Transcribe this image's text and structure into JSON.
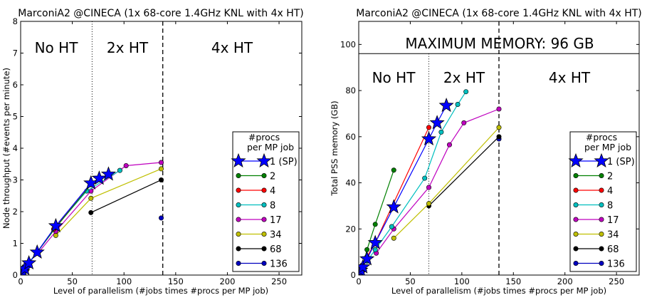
{
  "chart_data": [
    {
      "type": "line",
      "title": "MarconiA2 @CINECA (1x 68-core 1.4GHz KNL with 4x HT)",
      "xlabel": "Level of parallelism (#jobs times #procs per MP job)",
      "ylabel": "Node throughput (#events per minute)",
      "xlim": [
        0,
        272
      ],
      "ylim": [
        0,
        8
      ],
      "xticks": [
        "0",
        "50",
        "100",
        "150",
        "200",
        "250"
      ],
      "yticks": [
        "0",
        "1",
        "2",
        "3",
        "4",
        "5",
        "6",
        "7",
        "8"
      ],
      "regions": [
        {
          "label": "No HT",
          "x": 34
        },
        {
          "label": "2x HT",
          "x": 102
        },
        {
          "label": "4x HT",
          "x": 204
        }
      ],
      "vlines": [
        {
          "x": 68,
          "style": "dotted"
        },
        {
          "x": 136,
          "style": "dashed"
        }
      ],
      "legend_title": "#procs\nper MP job",
      "legend_loc": "lower-right",
      "series": [
        {
          "name": "1 (SP)",
          "color": "#0000ff",
          "marker": "star",
          "points": [
            [
              1,
              0.05
            ],
            [
              2,
              0.1
            ],
            [
              4,
              0.2
            ],
            [
              8,
              0.38
            ],
            [
              16,
              0.72
            ],
            [
              34,
              1.55
            ],
            [
              68,
              2.9
            ],
            [
              76,
              3.05
            ],
            [
              85,
              3.18
            ]
          ]
        },
        {
          "name": "2",
          "color": "#008000",
          "marker": "circle",
          "points": [
            [
              2,
              0.1
            ],
            [
              4,
              0.2
            ],
            [
              8,
              0.38
            ],
            [
              16,
              0.72
            ],
            [
              34,
              1.5
            ],
            [
              68,
              2.85
            ]
          ]
        },
        {
          "name": "4",
          "color": "#ff0000",
          "marker": "circle",
          "points": [
            [
              4,
              0.2
            ],
            [
              8,
              0.38
            ],
            [
              16,
              0.72
            ],
            [
              32,
              1.45
            ],
            [
              68,
              2.9
            ]
          ]
        },
        {
          "name": "8",
          "color": "#00bfbf",
          "marker": "circle",
          "points": [
            [
              8,
              0.4
            ],
            [
              16,
              0.72
            ],
            [
              32,
              1.45
            ],
            [
              64,
              2.65
            ],
            [
              96,
              3.3
            ]
          ]
        },
        {
          "name": "17",
          "color": "#bf00bf",
          "marker": "circle",
          "points": [
            [
              17,
              0.7
            ],
            [
              34,
              1.38
            ],
            [
              68,
              2.65
            ],
            [
              102,
              3.45
            ],
            [
              136,
              3.55
            ]
          ]
        },
        {
          "name": "34",
          "color": "#bfbf00",
          "marker": "circle",
          "points": [
            [
              34,
              1.25
            ],
            [
              68,
              2.42
            ],
            [
              136,
              3.35
            ]
          ]
        },
        {
          "name": "68",
          "color": "#000000",
          "marker": "circle",
          "points": [
            [
              68,
              1.97
            ],
            [
              136,
              3.0
            ]
          ]
        },
        {
          "name": "136",
          "color": "#0000bf",
          "marker": "circle",
          "points": [
            [
              136,
              1.8
            ]
          ]
        }
      ]
    },
    {
      "type": "line",
      "title": "MarconiA2 @CINECA (1x 68-core 1.4GHz KNL with 4x HT)",
      "xlabel": "Level of parallelism (#jobs times #procs per MP job)",
      "ylabel": "Total PSS memory (GB)",
      "xlim": [
        0,
        272
      ],
      "ylim": [
        0,
        110
      ],
      "xticks": [
        "0",
        "50",
        "100",
        "150",
        "200",
        "250"
      ],
      "yticks": [
        "0",
        "20",
        "40",
        "60",
        "80",
        "100"
      ],
      "hline": {
        "y": 96,
        "label": "MAXIMUM MEMORY: 96 GB"
      },
      "regions": [
        {
          "label": "No HT",
          "x": 34
        },
        {
          "label": "2x HT",
          "x": 102
        },
        {
          "label": "4x HT",
          "x": 204
        }
      ],
      "vlines": [
        {
          "x": 68,
          "style": "dotted"
        },
        {
          "x": 136,
          "style": "dashed"
        }
      ],
      "legend_title": "#procs\nper MP job",
      "legend_loc": "lower-right",
      "series": [
        {
          "name": "1 (SP)",
          "color": "#0000ff",
          "marker": "star",
          "points": [
            [
              1,
              1
            ],
            [
              2,
              2
            ],
            [
              4,
              3.5
            ],
            [
              8,
              7
            ],
            [
              16,
              14
            ],
            [
              34,
              29.5
            ],
            [
              68,
              59
            ],
            [
              76,
              66
            ],
            [
              85,
              73.5
            ]
          ]
        },
        {
          "name": "2",
          "color": "#008000",
          "marker": "circle",
          "points": [
            [
              2,
              2
            ],
            [
              4,
              4
            ],
            [
              8,
              11
            ],
            [
              16,
              22
            ],
            [
              34,
              45.5
            ]
          ]
        },
        {
          "name": "4",
          "color": "#ff0000",
          "marker": "circle",
          "points": [
            [
              4,
              4
            ],
            [
              8,
              8
            ],
            [
              16,
              14
            ],
            [
              32,
              29.5
            ],
            [
              68,
              64
            ]
          ]
        },
        {
          "name": "8",
          "color": "#00bfbf",
          "marker": "circle",
          "points": [
            [
              8,
              6
            ],
            [
              16,
              11
            ],
            [
              32,
              21
            ],
            [
              64,
              42
            ],
            [
              80,
              62
            ],
            [
              96,
              74
            ],
            [
              104,
              79.5
            ]
          ]
        },
        {
          "name": "17",
          "color": "#bf00bf",
          "marker": "circle",
          "points": [
            [
              17,
              9.5
            ],
            [
              34,
              20
            ],
            [
              68,
              38
            ],
            [
              88,
              56.5
            ],
            [
              102,
              66
            ],
            [
              136,
              72
            ]
          ]
        },
        {
          "name": "34",
          "color": "#bfbf00",
          "marker": "circle",
          "points": [
            [
              34,
              16
            ],
            [
              68,
              31
            ],
            [
              136,
              64
            ]
          ]
        },
        {
          "name": "68",
          "color": "#000000",
          "marker": "circle",
          "points": [
            [
              68,
              30
            ],
            [
              136,
              60
            ]
          ]
        },
        {
          "name": "136",
          "color": "#0000bf",
          "marker": "circle",
          "points": [
            [
              136,
              59
            ]
          ]
        }
      ]
    }
  ]
}
